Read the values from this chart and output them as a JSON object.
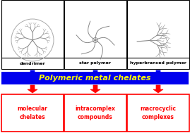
{
  "title": "Polymeric metal chelates",
  "top_labels": [
    "dendrimer",
    "star polymer",
    "hyperbranced polymer"
  ],
  "bottom_labels": [
    [
      "molecular",
      "chelates"
    ],
    [
      "intracomplex",
      "compounds"
    ],
    [
      "macrocyclic",
      "complexes"
    ]
  ],
  "box_bg": "#ffffff",
  "border_color": "#000000",
  "blue_bar_color": "#0000ee",
  "blue_bar_text_color": "#ffff00",
  "red_box_border": "#ff0000",
  "red_text_color": "#ff0000",
  "blue_arrow_color": "#0000ee",
  "red_arrow_color": "#ff0000",
  "polymer_color": "#5a8a7a",
  "fig_width": 2.69,
  "fig_height": 1.89,
  "dpi": 100
}
